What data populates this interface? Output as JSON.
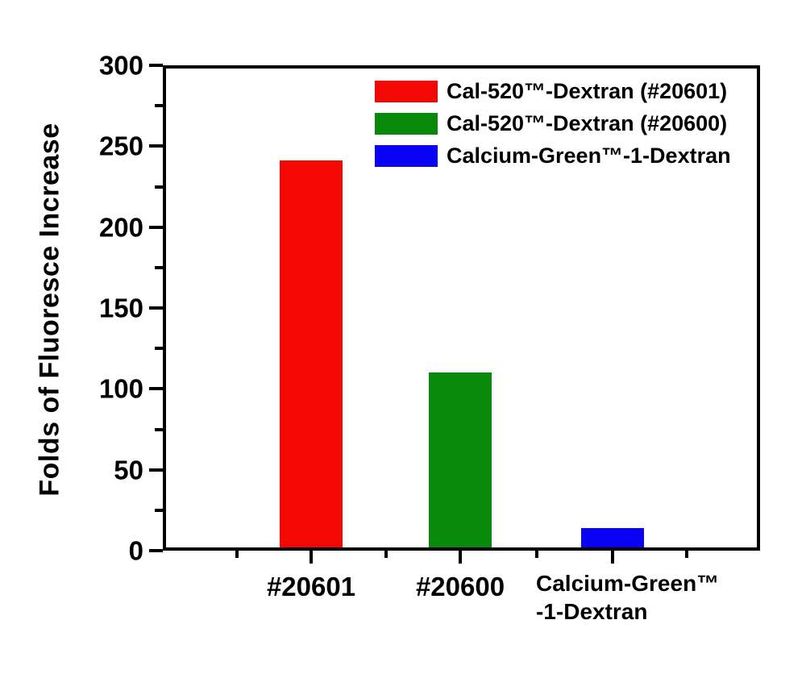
{
  "chart_data": {
    "type": "bar",
    "title": "",
    "xlabel": "",
    "ylabel": "Folds of Fluoresce Increase",
    "ylim": [
      0,
      300
    ],
    "yticks": [
      0,
      50,
      100,
      150,
      200,
      250,
      300
    ],
    "minor_ytick_interval": 25,
    "grid": false,
    "plot_frame": true,
    "axis_color": "#000000",
    "background": "#ffffff",
    "categories": [
      "#20601",
      "#20600",
      "Calcium-Green™\n-1-Dextran"
    ],
    "values": [
      241,
      110,
      14
    ],
    "bar_colors": [
      "#f40803",
      "#098909",
      "#0a02f4"
    ],
    "legend": {
      "position": "top-right-inside",
      "entries": [
        {
          "label": "Cal-520™-Dextran (#20601)",
          "color": "#f40803"
        },
        {
          "label": "Cal-520™-Dextran (#20600)",
          "color": "#098909"
        },
        {
          "label": "Calcium-Green™-1-Dextran",
          "color": "#0a02f4"
        }
      ]
    }
  }
}
